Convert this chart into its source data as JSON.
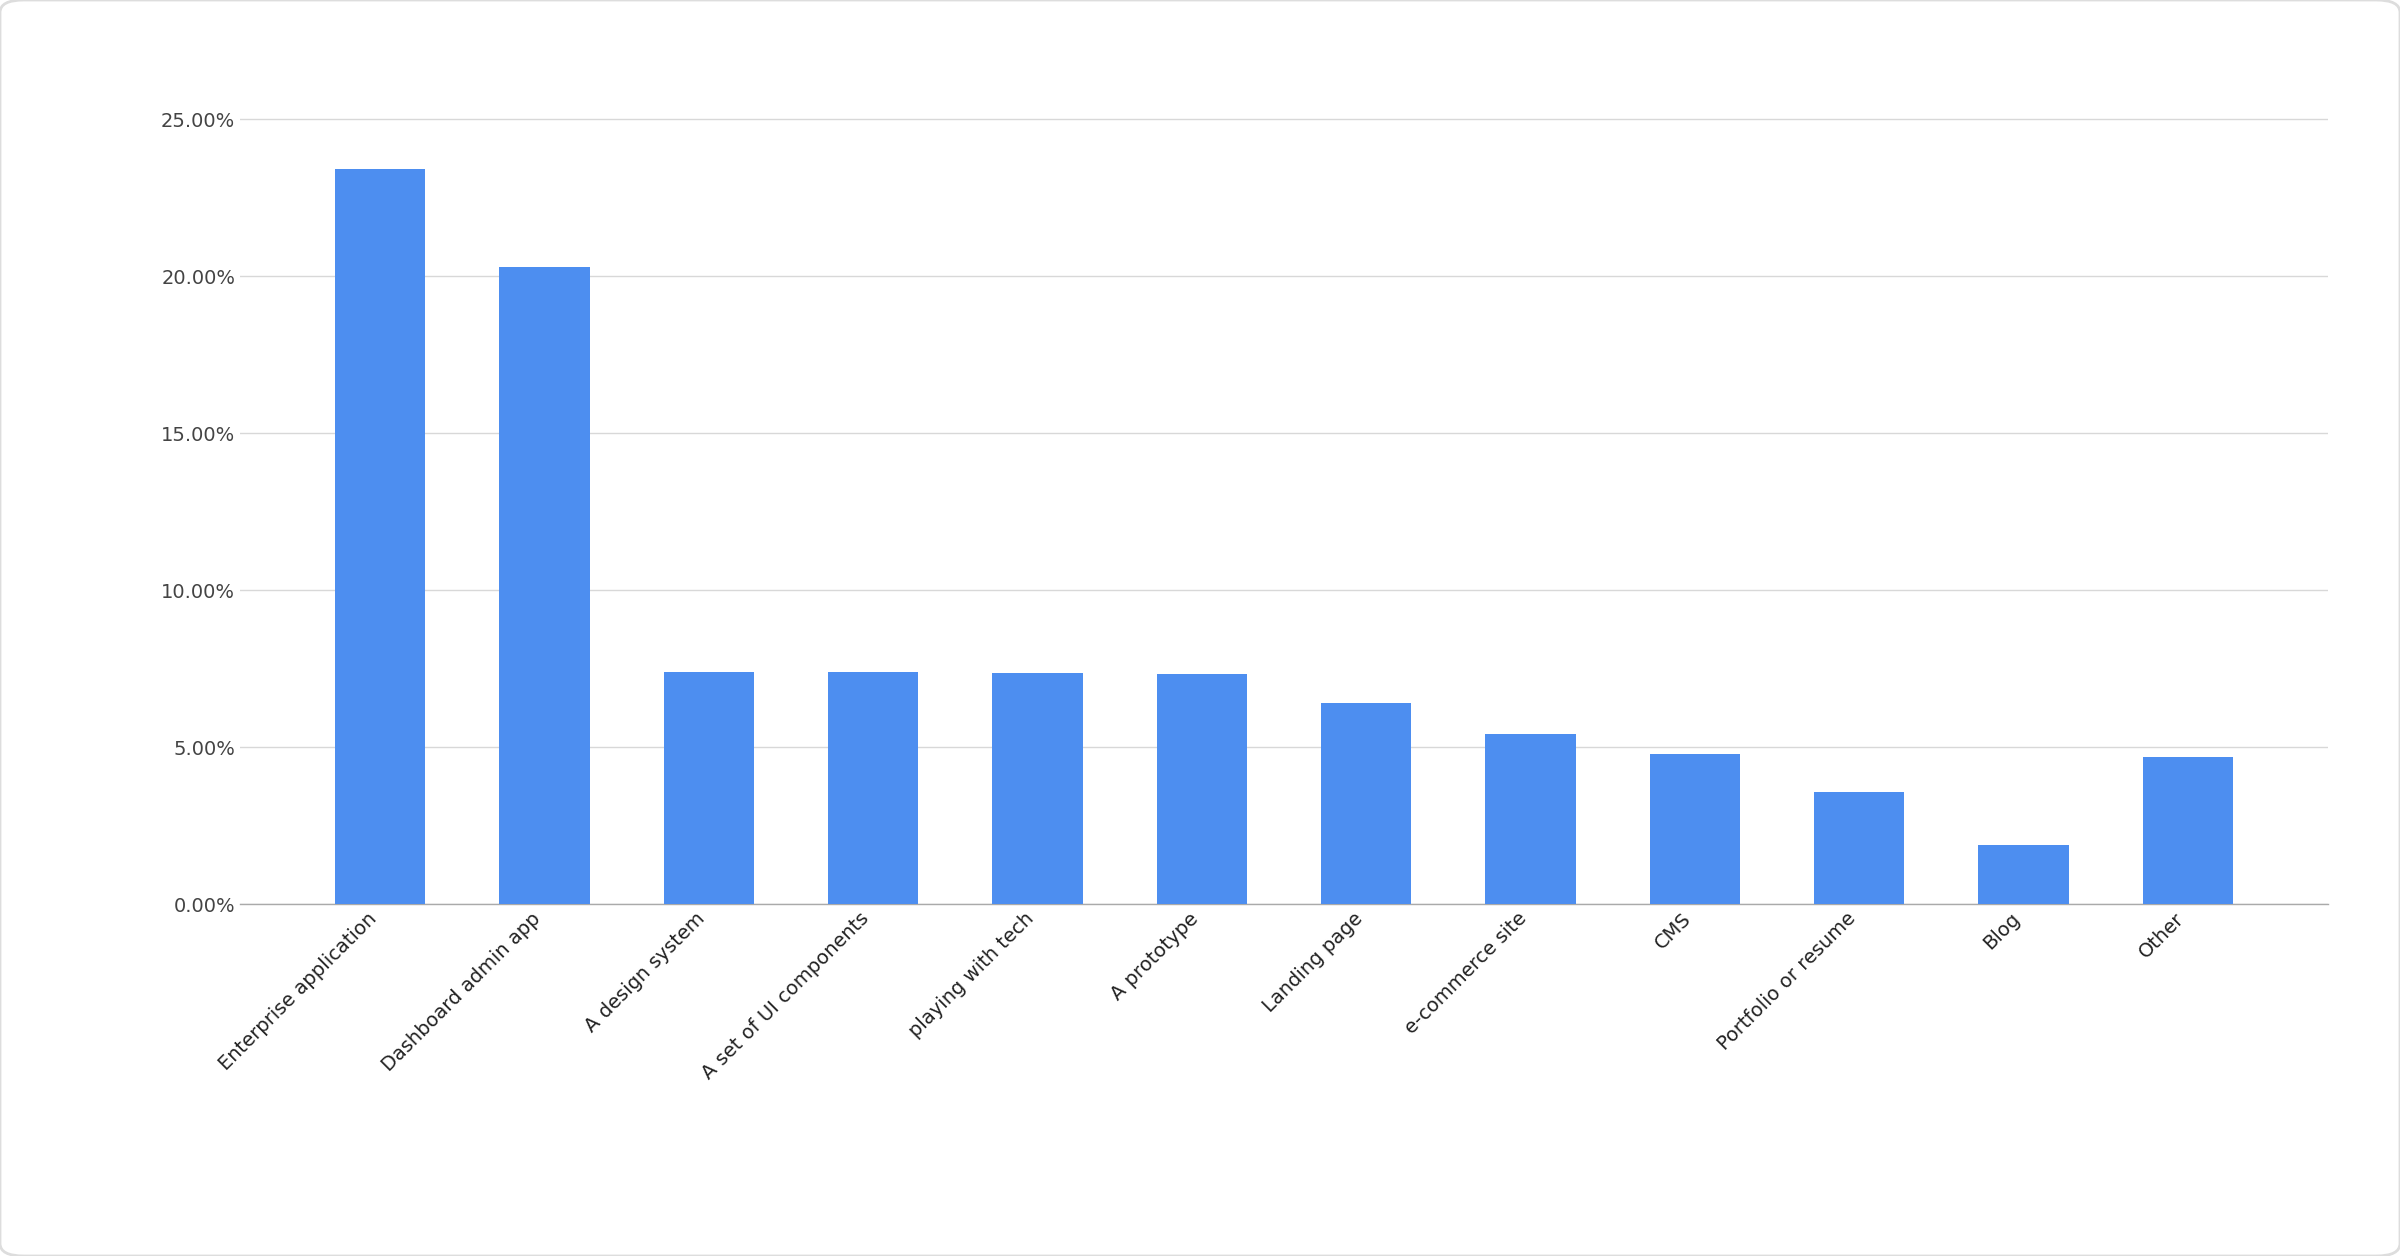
{
  "categories": [
    "Enterprise application",
    "Dashboard admin app",
    "A design system",
    "A set of UI components",
    "playing with tech",
    "A prototype",
    "Landing page",
    "e-commerce site",
    "CMS",
    "Portfolio or resume",
    "Blog",
    "Other"
  ],
  "values": [
    23.43,
    20.31,
    7.4,
    7.4,
    7.37,
    7.34,
    6.4,
    5.41,
    4.8,
    3.59,
    1.88,
    4.69
  ],
  "bar_color": "#4d8ef0",
  "background_color": "#ffffff",
  "grid_color": "#d8d8d8",
  "border_color": "#dddddd",
  "ylim": [
    0,
    26
  ],
  "yticks": [
    0,
    5,
    10,
    15,
    20,
    25
  ],
  "ytick_labels": [
    "0.00%",
    "5.00%",
    "10.00%",
    "15.00%",
    "20.00%",
    "25.00%"
  ],
  "bar_width": 0.55,
  "tick_fontsize": 14,
  "label_color": "#222222",
  "ytick_color": "#444444"
}
